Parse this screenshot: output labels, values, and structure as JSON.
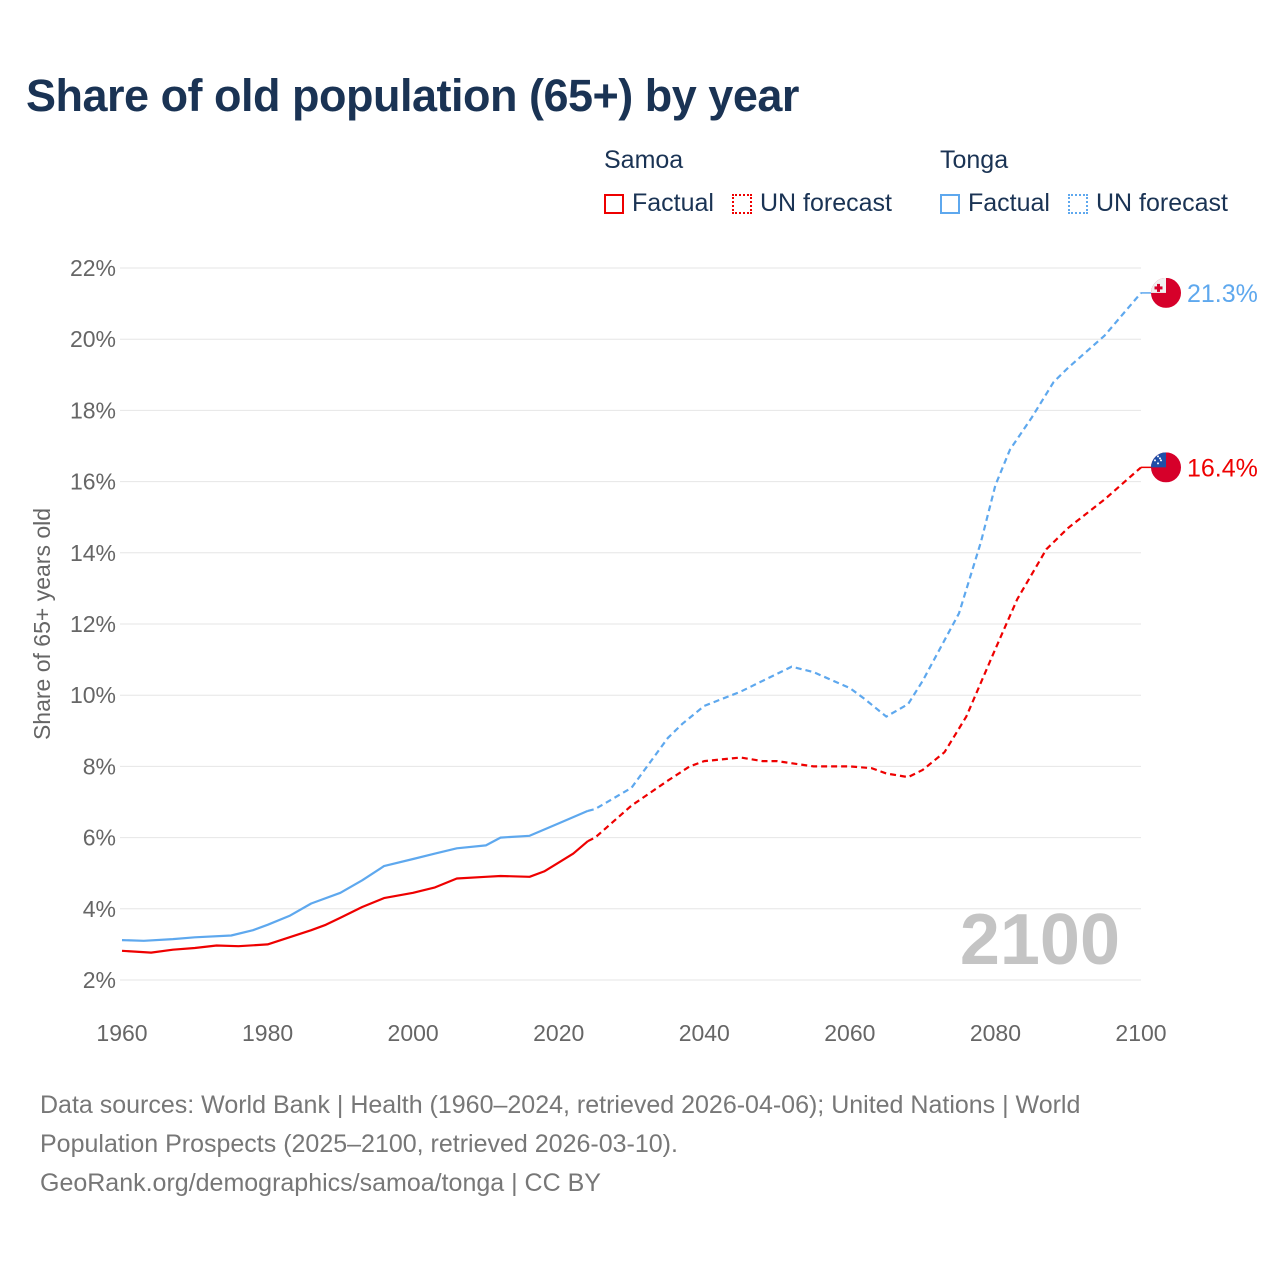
{
  "chart_data": {
    "type": "line",
    "title": "Share of old population (65+) by year",
    "ylabel": "Share of 65+ years old",
    "xlabel": "",
    "xlim": [
      1960,
      2100
    ],
    "ylim": [
      2,
      22
    ],
    "x_ticks": [
      "1960",
      "1980",
      "2000",
      "2020",
      "2040",
      "2060",
      "2080",
      "2100"
    ],
    "y_ticks": [
      "2%",
      "4%",
      "6%",
      "8%",
      "10%",
      "12%",
      "14%",
      "16%",
      "18%",
      "20%",
      "22%"
    ],
    "grid": true,
    "year_watermark": "2100",
    "legend_placement": "top-right",
    "series": [
      {
        "name": "Samoa",
        "color": "#ee0000",
        "end_label": "16.4%",
        "flag": "samoa-flag",
        "factual": {
          "x": [
            1960,
            1964,
            1967,
            1970,
            1973,
            1976,
            1980,
            1983,
            1986,
            1988,
            1990,
            1993,
            1996,
            2000,
            2003,
            2006,
            2010,
            2012,
            2016,
            2018,
            2020,
            2022,
            2024
          ],
          "y": [
            2.82,
            2.77,
            2.85,
            2.9,
            2.97,
            2.95,
            3.0,
            3.2,
            3.4,
            3.55,
            3.75,
            4.05,
            4.3,
            4.45,
            4.6,
            4.85,
            4.9,
            4.92,
            4.9,
            5.05,
            5.3,
            5.55,
            5.9
          ]
        },
        "forecast": {
          "x": [
            2024,
            2025,
            2030,
            2035,
            2038,
            2040,
            2045,
            2048,
            2050,
            2055,
            2060,
            2063,
            2065,
            2068,
            2070,
            2073,
            2076,
            2080,
            2083,
            2087,
            2090,
            2095,
            2100
          ],
          "y": [
            5.9,
            6.0,
            6.9,
            7.6,
            8.0,
            8.15,
            8.25,
            8.15,
            8.15,
            8.0,
            8.0,
            7.95,
            7.8,
            7.7,
            7.9,
            8.4,
            9.4,
            11.3,
            12.7,
            14.1,
            14.7,
            15.5,
            16.4
          ]
        }
      },
      {
        "name": "Tonga",
        "color": "#5ea8ee",
        "end_label": "21.3%",
        "flag": "tonga-flag",
        "factual": {
          "x": [
            1960,
            1963,
            1967,
            1970,
            1975,
            1978,
            1980,
            1983,
            1986,
            1990,
            1993,
            1996,
            2000,
            2003,
            2006,
            2010,
            2012,
            2016,
            2020,
            2024
          ],
          "y": [
            3.12,
            3.1,
            3.15,
            3.2,
            3.25,
            3.4,
            3.55,
            3.8,
            4.15,
            4.45,
            4.8,
            5.2,
            5.4,
            5.55,
            5.7,
            5.78,
            6.0,
            6.05,
            6.4,
            6.75
          ]
        },
        "forecast": {
          "x": [
            2024,
            2025,
            2030,
            2035,
            2037,
            2040,
            2045,
            2050,
            2052,
            2055,
            2060,
            2062,
            2065,
            2068,
            2070,
            2075,
            2078,
            2080,
            2082,
            2085,
            2088,
            2090,
            2095,
            2100
          ],
          "y": [
            6.75,
            6.8,
            7.4,
            8.8,
            9.2,
            9.7,
            10.1,
            10.6,
            10.8,
            10.65,
            10.2,
            9.9,
            9.4,
            9.75,
            10.4,
            12.3,
            14.3,
            15.9,
            16.9,
            17.8,
            18.8,
            19.2,
            20.1,
            21.3
          ]
        }
      }
    ]
  },
  "legend": {
    "groups": [
      {
        "name": "Samoa",
        "factual": "Factual",
        "forecast": "UN forecast"
      },
      {
        "name": "Tonga",
        "factual": "Factual",
        "forecast": "UN forecast"
      }
    ]
  },
  "footer": {
    "line1": "Data sources: World Bank | Health (1960–2024, retrieved 2026-04-06); United Nations | World Population Prospects (2025–2100, retrieved 2026-03-10).",
    "line2": "GeoRank.org/demographics/samoa/tonga | CC BY"
  }
}
